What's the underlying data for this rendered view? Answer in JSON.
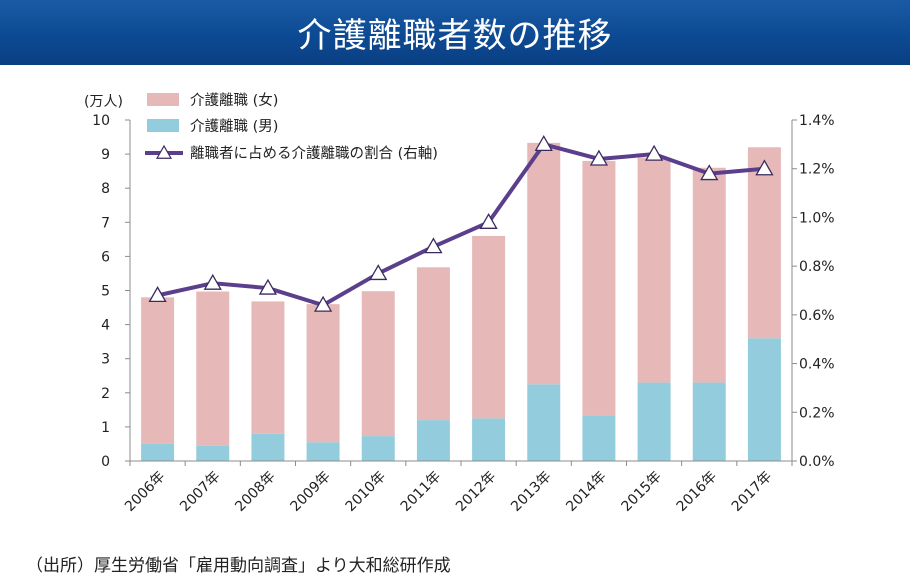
{
  "title": "介護離職者数の推移",
  "source": "（出所）厚生労働省「雇用動向調査」より大和総研作成",
  "colors": {
    "title_bar": "#0d4a94",
    "female_bar": "#e6b9b8",
    "male_bar": "#93cddd",
    "ratio_line": "#5b3f8c"
  },
  "chart_data": {
    "type": "bar",
    "stacked": true,
    "y_unit_label": "(万人)",
    "categories": [
      "2006年",
      "2007年",
      "2008年",
      "2009年",
      "2010年",
      "2011年",
      "2012年",
      "2013年",
      "2014年",
      "2015年",
      "2016年",
      "2017年"
    ],
    "ylim": [
      0,
      10
    ],
    "yticks": [
      "0",
      "1",
      "2",
      "3",
      "4",
      "5",
      "6",
      "7",
      "8",
      "9",
      "10"
    ],
    "y2lim": [
      0,
      1.4
    ],
    "y2ticks": [
      "0.0%",
      "0.2%",
      "0.4%",
      "0.6%",
      "0.8%",
      "1.0%",
      "1.2%",
      "1.4%"
    ],
    "series": [
      {
        "name": "介護離職 (男)",
        "kind": "bar",
        "axis": "left",
        "values": [
          0.5,
          0.45,
          0.8,
          0.55,
          0.73,
          1.2,
          1.25,
          2.25,
          1.32,
          2.3,
          2.3,
          3.6
        ]
      },
      {
        "name": "介護離職 (女)",
        "kind": "bar",
        "axis": "left",
        "values": [
          4.3,
          4.52,
          3.88,
          4.05,
          4.25,
          4.48,
          5.35,
          7.08,
          7.48,
          6.6,
          6.3,
          5.6
        ]
      },
      {
        "name": "離職者に占める介護離職の割合 (右軸)",
        "kind": "line",
        "axis": "right",
        "values": [
          0.68,
          0.73,
          0.71,
          0.64,
          0.77,
          0.88,
          0.98,
          1.3,
          1.24,
          1.26,
          1.18,
          1.2
        ]
      }
    ],
    "legend": [
      "介護離職 (女)",
      "介護離職 (男)",
      "離職者に占める介護離職の割合 (右軸)"
    ],
    "legend_position": "top-left",
    "grid": false
  }
}
